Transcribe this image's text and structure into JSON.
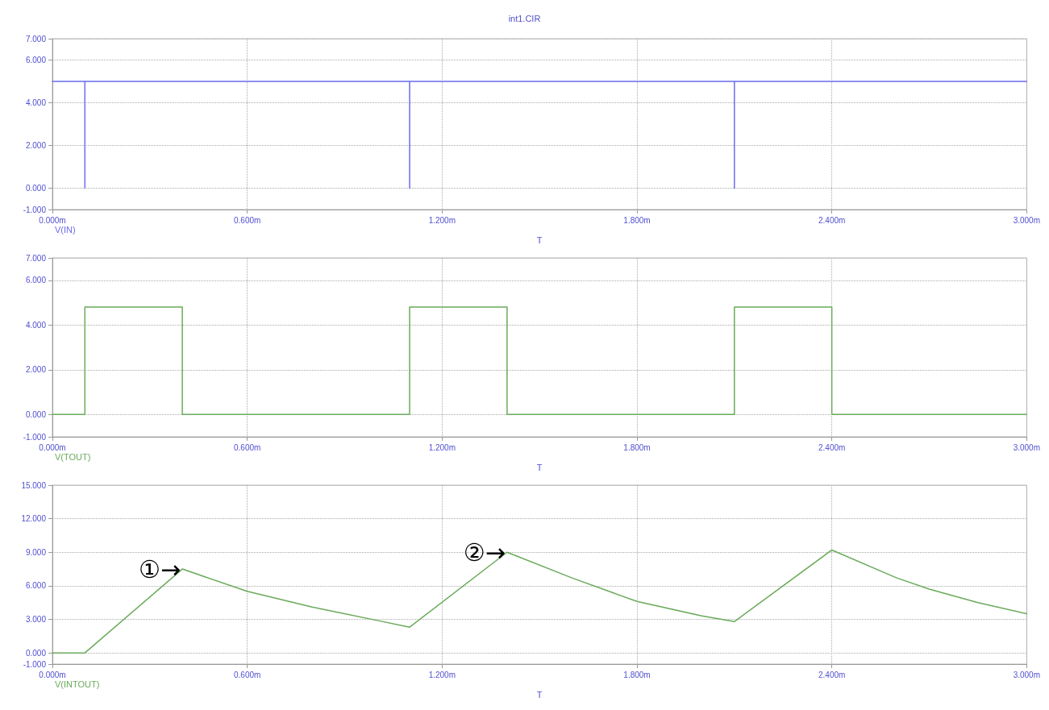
{
  "chart_data": [
    {
      "type": "line",
      "subtitle": "int1.CIR",
      "xlabel": "T",
      "xlim": [
        0,
        3
      ],
      "ylim": [
        -1,
        7
      ],
      "grid": true,
      "marker": "none",
      "line_style": "solid",
      "xticks": [
        {
          "value": 0,
          "label": "0.000m"
        },
        {
          "value": 0.6,
          "label": "0.600m"
        },
        {
          "value": 1.2,
          "label": "1.200m"
        },
        {
          "value": 1.8,
          "label": "1.800m"
        },
        {
          "value": 2.4,
          "label": "2.400m"
        },
        {
          "value": 3,
          "label": "3.000m"
        }
      ],
      "yticks": [
        {
          "value": -1,
          "label": "-1.000"
        },
        {
          "value": 0,
          "label": "0.000"
        },
        {
          "value": 2,
          "label": "2.000"
        },
        {
          "value": 4,
          "label": "4.000"
        },
        {
          "value": 6,
          "label": "6.000"
        },
        {
          "value": 7,
          "label": "7.000"
        }
      ],
      "series": [
        {
          "name": "V(IN)",
          "color": "#6b6bf0",
          "x": [
            0,
            0.1,
            0.1,
            0.1,
            1.1,
            1.1,
            1.1,
            2.1,
            2.1,
            2.1,
            3
          ],
          "values": [
            5,
            5,
            0,
            5,
            5,
            0,
            5,
            5,
            0,
            5,
            5
          ]
        }
      ]
    },
    {
      "type": "line",
      "xlabel": "T",
      "xlim": [
        0,
        3
      ],
      "ylim": [
        -1,
        7
      ],
      "grid": true,
      "marker": "none",
      "line_style": "solid",
      "xticks": [
        {
          "value": 0,
          "label": "0.000m"
        },
        {
          "value": 0.6,
          "label": "0.600m"
        },
        {
          "value": 1.2,
          "label": "1.200m"
        },
        {
          "value": 1.8,
          "label": "1.800m"
        },
        {
          "value": 2.4,
          "label": "2.400m"
        },
        {
          "value": 3,
          "label": "3.000m"
        }
      ],
      "yticks": [
        {
          "value": -1,
          "label": "-1.000"
        },
        {
          "value": 0,
          "label": "0.000"
        },
        {
          "value": 2,
          "label": "2.000"
        },
        {
          "value": 4,
          "label": "4.000"
        },
        {
          "value": 6,
          "label": "6.000"
        },
        {
          "value": 7,
          "label": "7.000"
        }
      ],
      "series": [
        {
          "name": "V(TOUT)",
          "color": "#6aaa5a",
          "x": [
            0,
            0.1,
            0.1,
            0.4,
            0.4,
            1.1,
            1.1,
            1.4,
            1.4,
            2.1,
            2.1,
            2.4,
            2.4,
            3
          ],
          "values": [
            0,
            0,
            4.8,
            4.8,
            0,
            0,
            4.8,
            4.8,
            0,
            0,
            4.8,
            4.8,
            0,
            0
          ]
        }
      ]
    },
    {
      "type": "line",
      "xlabel": "T",
      "xlim": [
        0,
        3
      ],
      "ylim": [
        -1,
        15
      ],
      "grid": true,
      "marker": "none",
      "line_style": "solid",
      "xticks": [
        {
          "value": 0,
          "label": "0.000m"
        },
        {
          "value": 0.6,
          "label": "0.600m"
        },
        {
          "value": 1.2,
          "label": "1.200m"
        },
        {
          "value": 1.8,
          "label": "1.800m"
        },
        {
          "value": 2.4,
          "label": "2.400m"
        },
        {
          "value": 3,
          "label": "3.000m"
        }
      ],
      "yticks": [
        {
          "value": -1,
          "label": "-1.000"
        },
        {
          "value": 0,
          "label": "0.000"
        },
        {
          "value": 3,
          "label": "3.000"
        },
        {
          "value": 6,
          "label": "6.000"
        },
        {
          "value": 9,
          "label": "9.000"
        },
        {
          "value": 12,
          "label": "12.000"
        },
        {
          "value": 15,
          "label": "15.000"
        }
      ],
      "annotations": [
        {
          "text": "①→",
          "x": 0.4,
          "y": 7.5
        },
        {
          "text": "②→",
          "x": 1.4,
          "y": 9.0
        }
      ],
      "series": [
        {
          "name": "V(INTOUT)",
          "color": "#6aaa5a",
          "x": [
            0,
            0.1,
            0.4,
            0.6,
            0.8,
            1.0,
            1.1,
            1.4,
            1.6,
            1.8,
            2.0,
            2.1,
            2.4,
            2.6,
            2.7,
            2.85,
            3.0
          ],
          "values": [
            0,
            0,
            7.5,
            5.5,
            4.1,
            2.9,
            2.3,
            9.0,
            6.7,
            4.6,
            3.3,
            2.8,
            9.2,
            6.7,
            5.7,
            4.5,
            3.5
          ]
        }
      ]
    }
  ]
}
